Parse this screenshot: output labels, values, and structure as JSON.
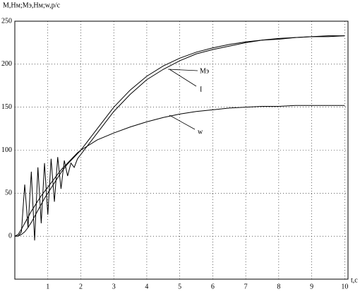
{
  "chart_data": {
    "type": "line",
    "title": "M,Hм;Mэ,Hм;w,p/c",
    "x_label": "t,c",
    "x": [
      0,
      0.1,
      0.2,
      0.3,
      0.4,
      0.5,
      0.6,
      0.7,
      0.8,
      0.9,
      1.0,
      1.1,
      1.2,
      1.3,
      1.4,
      1.5,
      1.6,
      1.7,
      1.8,
      1.9,
      2.0,
      2.5,
      3,
      3.5,
      4,
      4.5,
      5,
      5.5,
      6,
      6.5,
      7,
      7.5,
      8,
      8.5,
      9,
      9.5,
      10
    ],
    "series": [
      {
        "name": "Mэ",
        "color": "#000000",
        "values": [
          0,
          0,
          2,
          5,
          10,
          16,
          23,
          30,
          37,
          44,
          50,
          56,
          62,
          68,
          74,
          79,
          84,
          88,
          92,
          96,
          100,
          125,
          150,
          170,
          186,
          198,
          207,
          214,
          219,
          223,
          226,
          228,
          230,
          231,
          232,
          233,
          233
        ]
      },
      {
        "name": "I",
        "color": "#000000",
        "values": [
          0,
          0,
          5,
          60,
          10,
          75,
          -5,
          80,
          15,
          85,
          25,
          90,
          40,
          92,
          55,
          88,
          70,
          85,
          80,
          90,
          95,
          120,
          145,
          165,
          182,
          194,
          204,
          212,
          217,
          221,
          225,
          228,
          229,
          231,
          232,
          232,
          233
        ]
      },
      {
        "name": "w",
        "color": "#000000",
        "values": [
          0,
          2,
          8,
          15,
          22,
          29,
          35,
          41,
          47,
          52,
          57,
          62,
          67,
          72,
          77,
          81,
          85,
          89,
          93,
          97,
          100,
          112,
          120,
          127,
          133,
          138,
          142,
          145,
          147,
          149,
          150,
          151,
          151,
          152,
          152,
          152,
          152
        ]
      }
    ],
    "xlim": [
      0,
      10.1
    ],
    "xticks": [
      1,
      2,
      3,
      4,
      5,
      6,
      7,
      8,
      9,
      10
    ],
    "ylim": [
      -50,
      250
    ],
    "yticks": [
      0,
      50,
      100,
      150,
      200,
      250
    ],
    "grid": true
  }
}
